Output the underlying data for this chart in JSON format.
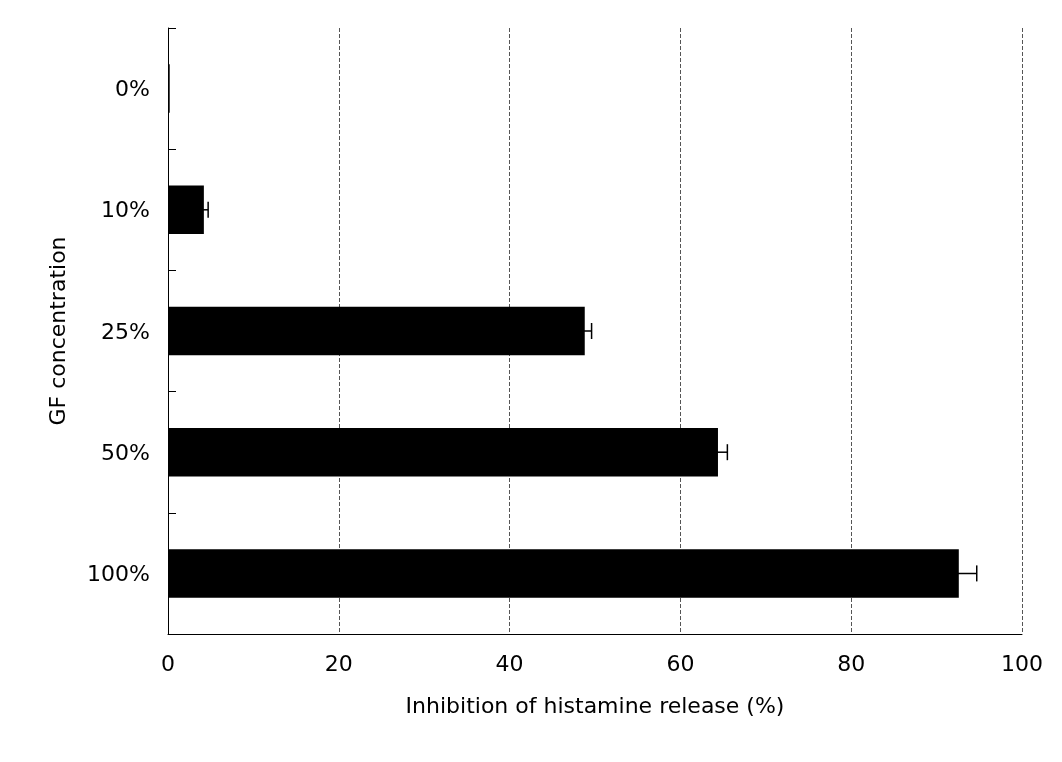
{
  "chart_data": {
    "type": "bar",
    "orientation": "horizontal",
    "xlabel": "Inhibition of histamine release (%)",
    "ylabel": "GF concentration",
    "categories": [
      "0%",
      "10%",
      "25%",
      "50%",
      "100%"
    ],
    "values": [
      0.2,
      4.2,
      48.8,
      64.4,
      92.6
    ],
    "errors": [
      null,
      0.5,
      0.8,
      1.1,
      2.1
    ],
    "color": "#000000",
    "xlim": [
      0,
      100
    ],
    "xticks": [
      0,
      20,
      40,
      60,
      80,
      100
    ],
    "grid": "x"
  }
}
